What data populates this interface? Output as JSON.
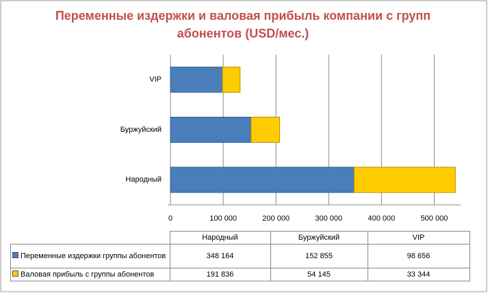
{
  "chart_data": {
    "type": "stacked-bar-horizontal",
    "title": "Переменные издержки и валовая прибыль компании с групп абонентов (USD/мес.)",
    "categories": [
      "Народный",
      "Буржуйский",
      "VIP"
    ],
    "series": [
      {
        "name": "Переменные издержки группы абонентов",
        "color": "#4a7ebb",
        "values": [
          348164,
          152855,
          98656
        ],
        "value_labels": [
          "348 164",
          "152 855",
          "98 656"
        ]
      },
      {
        "name": "Валовая прибыль с группы абонентов",
        "color": "#ffcc00",
        "values": [
          191836,
          54145,
          33344
        ],
        "value_labels": [
          "191 836",
          "54 145",
          "33 344"
        ]
      }
    ],
    "xlim": [
      0,
      550000
    ],
    "xticks": [
      0,
      {
        "value": 100000,
        "label": "100 000"
      },
      {
        "value": 200000,
        "label": "200 000"
      },
      {
        "value": 300000,
        "label": "300 000"
      },
      {
        "value": 400000,
        "label": "400 000"
      },
      {
        "value": 500000,
        "label": "500 000"
      }
    ],
    "grid": true
  }
}
